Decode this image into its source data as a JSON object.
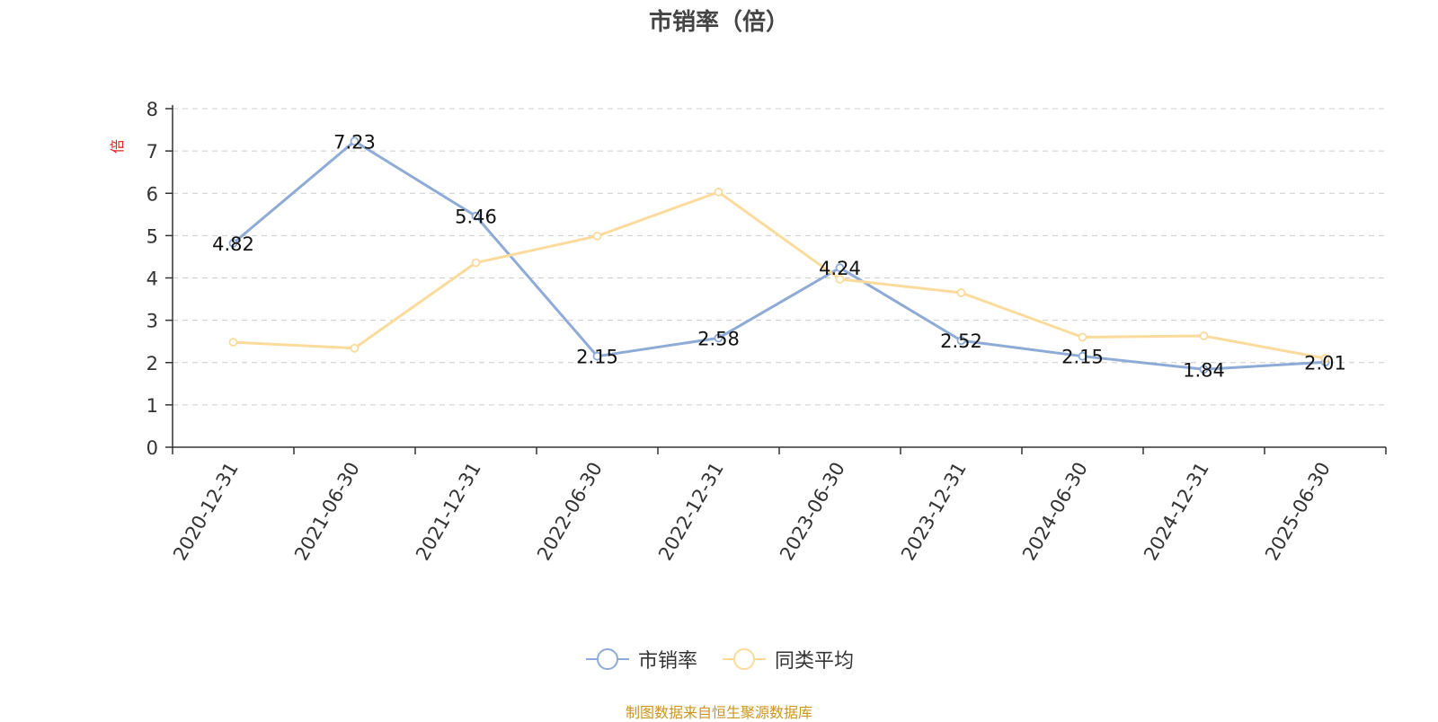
{
  "chart_data": {
    "type": "line",
    "title": "市销率（倍）",
    "ylabel": "倍",
    "xlabel": "",
    "ylim": [
      0,
      8
    ],
    "yticks": [
      "0",
      "1",
      "2",
      "3",
      "4",
      "5",
      "6",
      "7",
      "8"
    ],
    "grid": true,
    "legend_position": "bottom",
    "categories": [
      "2020-12-31",
      "2021-06-30",
      "2021-12-31",
      "2022-06-30",
      "2022-12-31",
      "2023-06-30",
      "2023-12-31",
      "2024-06-30",
      "2024-12-31",
      "2025-06-30"
    ],
    "series": [
      {
        "name": "市销率",
        "color": "#8eaad6",
        "values": [
          4.82,
          7.23,
          5.46,
          2.15,
          2.58,
          4.24,
          2.52,
          2.15,
          1.84,
          2.01
        ],
        "labels": [
          "4.82",
          "7.23",
          "5.46",
          "2.15",
          "2.58",
          "4.24",
          "2.52",
          "2.15",
          "1.84",
          "2.01"
        ]
      },
      {
        "name": "同类平均",
        "color": "#fbdb9c",
        "values": [
          2.48,
          2.34,
          4.36,
          4.99,
          6.03,
          3.97,
          3.65,
          2.6,
          2.63,
          2.1
        ]
      }
    ]
  },
  "source_note": "制图数据来自恒生聚源数据库",
  "colors": {
    "title": "#444444",
    "axis": "#333333",
    "grid": "#cccccc",
    "ylabel": "#e02020",
    "source_note": "#c8961e"
  }
}
